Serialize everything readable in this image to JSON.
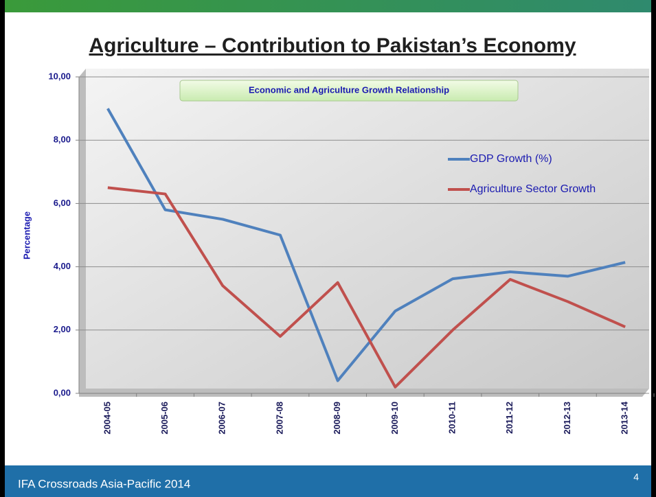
{
  "chart_data": {
    "type": "line",
    "title": "Agriculture – Contribution to Pakistan’s Economy",
    "subtitle": "Economic and Agriculture Growth Relationship",
    "y_label": "Percentage",
    "categories": [
      "2004-05",
      "2005-06",
      "2006-07",
      "2007-08",
      "2008-09",
      "2009-10",
      "2010-11",
      "2011-12",
      "2012-13",
      "2013-14"
    ],
    "series": [
      {
        "name": "GDP Growth (%)",
        "color": "#4f81bd",
        "values": [
          9.0,
          5.8,
          5.5,
          5.0,
          0.4,
          2.6,
          3.62,
          3.84,
          3.7,
          4.14
        ]
      },
      {
        "name": "Agriculture Sector Growth",
        "color": "#c0504d",
        "values": [
          6.5,
          6.3,
          3.4,
          1.8,
          3.5,
          0.2,
          2.0,
          3.6,
          2.9,
          2.1
        ]
      }
    ],
    "ylim": [
      0,
      10
    ],
    "yticks": [
      {
        "value": 0,
        "label": "0,00"
      },
      {
        "value": 2,
        "label": "2,00"
      },
      {
        "value": 4,
        "label": "4,00"
      },
      {
        "value": 6,
        "label": "6,00"
      },
      {
        "value": 8,
        "label": "8,00"
      },
      {
        "value": 10,
        "label": "10,00"
      }
    ],
    "grid": true,
    "legend": "right"
  },
  "footer": {
    "text": "IFA Crossroads Asia-Pacific 2014",
    "page": 4
  }
}
